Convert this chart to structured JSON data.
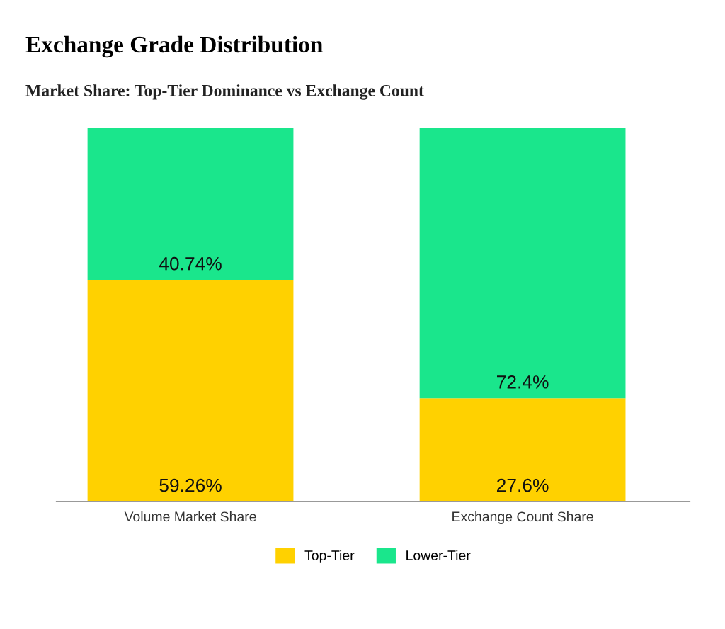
{
  "chart_data": {
    "type": "bar",
    "title": "Exchange Grade Distribution",
    "subtitle": "Market Share: Top-Tier Dominance vs Exchange Count",
    "categories": [
      "Volume Market Share",
      "Exchange Count Share"
    ],
    "stacked": true,
    "series": [
      {
        "name": "Top-Tier",
        "color": "#ffd100",
        "values": [
          59.26,
          27.6
        ],
        "value_labels": [
          "59.26%",
          "27.6%"
        ]
      },
      {
        "name": "Lower-Tier",
        "color": "#1ae68c",
        "values": [
          40.74,
          72.4
        ],
        "value_labels": [
          "40.74%",
          "72.4%"
        ]
      }
    ],
    "ylim": [
      0,
      100
    ],
    "tick_labels": "x",
    "legend": "bottom",
    "grid": false
  }
}
